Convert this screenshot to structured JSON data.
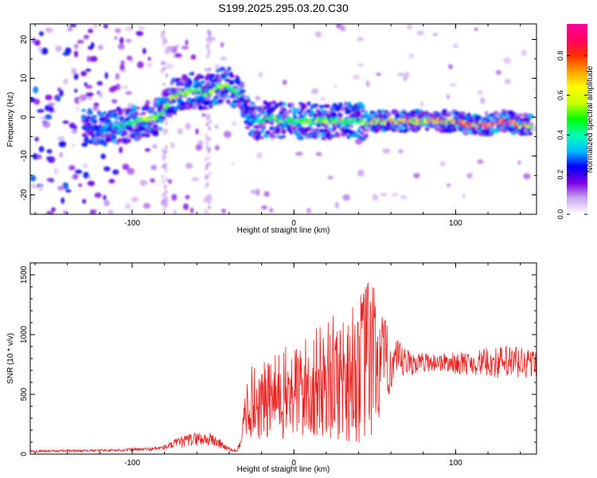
{
  "title": "S199.2025.295.03.20.C30",
  "chart_data": [
    {
      "type": "heatmap",
      "title": "S199.2025.295.03.20.C30",
      "xlabel": "Height of straight line (km)",
      "ylabel": "Frequency (Hz)",
      "xlim": [
        -163,
        150
      ],
      "ylim": [
        -25,
        24
      ],
      "xticks": [
        -100,
        0,
        100
      ],
      "xtick_labels": [
        "-100",
        "0",
        "100"
      ],
      "yticks": [
        -20,
        -10,
        0,
        10,
        20
      ],
      "ytick_labels": [
        "-20",
        "-10",
        "0",
        "10",
        "20"
      ],
      "ridge": {
        "x": [
          -163,
          -120,
          -105,
          -95,
          -85,
          -80,
          -75,
          -70,
          -60,
          -55,
          -50,
          -45,
          -40,
          -35,
          -32,
          -30,
          -28,
          -25,
          -20,
          -15,
          -10,
          0,
          10,
          20,
          30,
          40,
          45,
          50,
          60,
          70,
          80,
          90,
          100,
          110,
          120,
          130,
          140,
          147
        ],
        "freq": [
          -2,
          -3,
          -2,
          -1,
          0,
          2,
          5,
          6,
          7,
          6,
          7,
          8,
          8,
          6,
          5,
          3,
          0,
          -1,
          -1,
          0,
          -1,
          -1,
          -1,
          -1,
          -1,
          -1,
          -2,
          -1,
          -1,
          -1,
          -1,
          -1,
          -1,
          -2,
          -2,
          -1,
          -2,
          -2
        ],
        "amplitude": [
          0.15,
          0.25,
          0.4,
          0.5,
          0.55,
          0.5,
          0.6,
          0.55,
          0.5,
          0.45,
          0.55,
          0.6,
          0.5,
          0.4,
          0.3,
          0.25,
          0.3,
          0.35,
          0.4,
          0.45,
          0.5,
          0.45,
          0.5,
          0.55,
          0.5,
          0.45,
          0.6,
          0.6,
          0.65,
          0.7,
          0.65,
          0.7,
          0.7,
          0.8,
          0.85,
          0.95,
          0.7,
          0.6
        ]
      },
      "colorbar": {
        "label": "Normalized spectral amplitude",
        "ticks": [
          0.0,
          0.2,
          0.4,
          0.6,
          0.8
        ],
        "tick_labels": [
          "0.0",
          "0.2",
          "0.4",
          "0.6",
          "0.8"
        ],
        "range": [
          0,
          0.96
        ],
        "colors": [
          "#ffffff",
          "#c9a8f0",
          "#7a00e0",
          "#0000ff",
          "#00bfff",
          "#00ffb0",
          "#00ff00",
          "#c8ff00",
          "#ffff00",
          "#ffa000",
          "#ff3000",
          "#ff0060",
          "#ff00a0"
        ]
      }
    },
    {
      "type": "line",
      "xlabel": "Height of straight line (km)",
      "ylabel": "SNR (10 * v/v)",
      "xlim": [
        -163,
        150
      ],
      "ylim": [
        0,
        1600
      ],
      "xticks": [
        -100,
        0,
        100
      ],
      "xtick_labels": [
        "-100",
        "0",
        "100"
      ],
      "yticks": [
        0,
        500,
        1000,
        1500
      ],
      "ytick_labels": [
        "0",
        "500",
        "1000",
        "1500"
      ],
      "line_color": "#e82020",
      "envelope": {
        "x": [
          -163,
          -120,
          -90,
          -80,
          -70,
          -60,
          -50,
          -45,
          -40,
          -35,
          -32,
          -30,
          -28,
          -25,
          -20,
          -10,
          0,
          10,
          20,
          30,
          40,
          45,
          48,
          50,
          55,
          60,
          70,
          80,
          90,
          100,
          110,
          120,
          130,
          140,
          147
        ],
        "mid": [
          25,
          30,
          40,
          55,
          100,
          130,
          120,
          80,
          40,
          25,
          150,
          350,
          450,
          420,
          430,
          480,
          520,
          560,
          620,
          650,
          700,
          780,
          820,
          780,
          760,
          760,
          760,
          770,
          770,
          760,
          760,
          770,
          760,
          760,
          760
        ],
        "amp": [
          10,
          10,
          15,
          20,
          50,
          60,
          60,
          40,
          15,
          10,
          60,
          250,
          300,
          320,
          330,
          380,
          420,
          460,
          500,
          560,
          620,
          700,
          780,
          650,
          420,
          250,
          120,
          80,
          80,
          90,
          100,
          120,
          150,
          160,
          120
        ]
      }
    }
  ]
}
